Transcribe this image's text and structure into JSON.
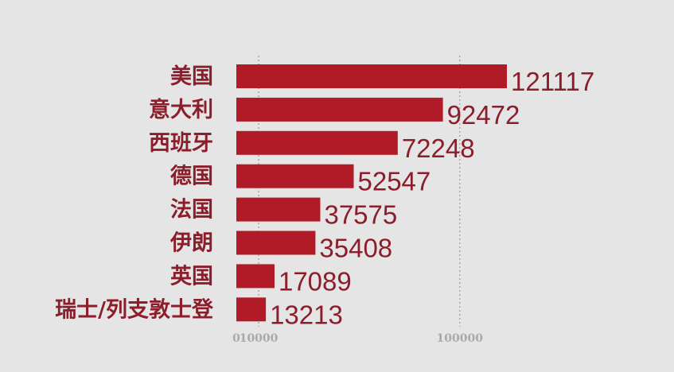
{
  "chart_data": {
    "type": "bar",
    "orientation": "horizontal",
    "categories": [
      "美国",
      "意大利",
      "西班牙",
      "德国",
      "法国",
      "伊朗",
      "英国",
      "瑞士/列支敦士登"
    ],
    "values": [
      121117,
      92472,
      72248,
      52547,
      37575,
      35408,
      17089,
      13213
    ],
    "x_ticks": [
      0,
      10000,
      100000
    ],
    "x_tick_labels": [
      "0",
      "10000",
      "100000"
    ],
    "xlim": [
      0,
      121117
    ],
    "grid": true,
    "gridlines_at": [
      10000,
      100000
    ],
    "bar_color": "#b11a27",
    "label_color": "#8b1e2a",
    "tick_color": "#a9a9a9",
    "background": "#e5e5e5"
  }
}
